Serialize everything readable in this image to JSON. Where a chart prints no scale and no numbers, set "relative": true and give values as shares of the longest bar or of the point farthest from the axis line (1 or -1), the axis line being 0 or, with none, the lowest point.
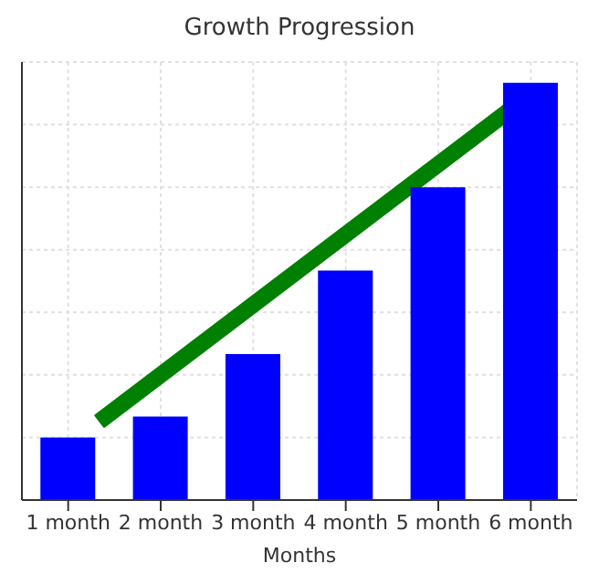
{
  "chart_data": {
    "type": "bar",
    "title": "Growth Progression",
    "xlabel": "Months",
    "relative": true,
    "categories": [
      "1 month",
      "2 month",
      "3 month",
      "4 month",
      "5 month",
      "6 month"
    ],
    "values": [
      0.15,
      0.2,
      0.35,
      0.55,
      0.75,
      1
    ],
    "color": "#0000ff",
    "grid": true
  }
}
